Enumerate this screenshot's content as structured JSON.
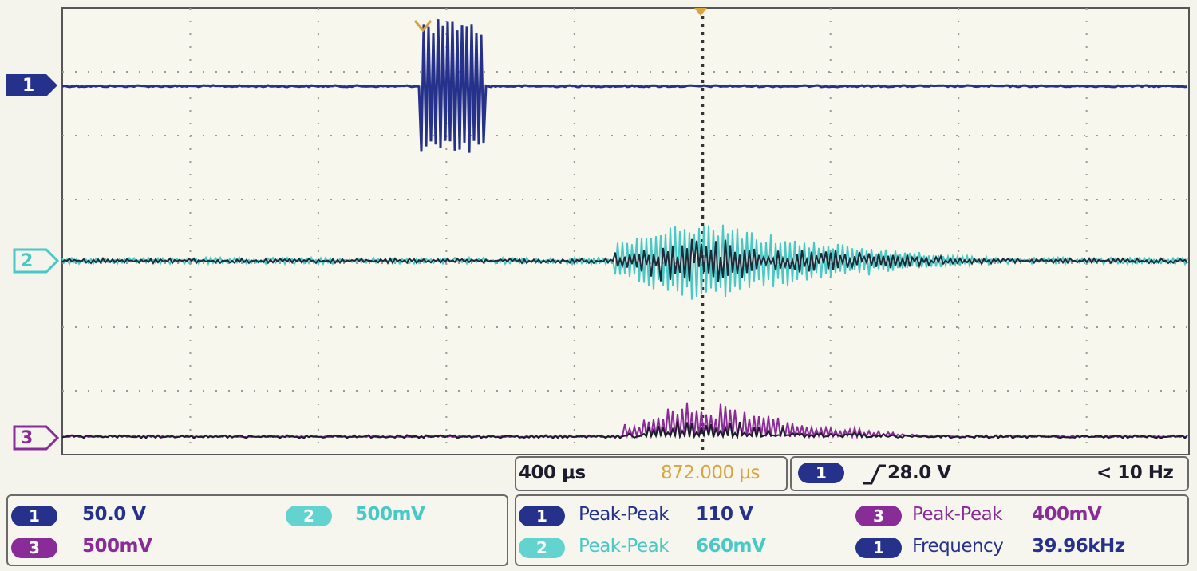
{
  "channel_markers": [
    "1",
    "2",
    "3"
  ],
  "timebase": {
    "scale": "400 μs",
    "delay": "872.000 μs"
  },
  "trigger": {
    "channel": "1",
    "level": "28.0 V",
    "frequency": "< 10 Hz"
  },
  "channel_scales": [
    {
      "channel": "1",
      "scale": "50.0 V"
    },
    {
      "channel": "2",
      "scale": "500mV"
    },
    {
      "channel": "3",
      "scale": "500mV"
    }
  ],
  "measurements": [
    {
      "channel": "1",
      "name": "Peak-Peak",
      "value": "110 V"
    },
    {
      "channel": "3",
      "name": "Peak-Peak",
      "value": "400mV"
    },
    {
      "channel": "2",
      "name": "Peak-Peak",
      "value": "660mV"
    },
    {
      "channel": "1",
      "name": "Frequency",
      "value": "39.96kHz"
    }
  ]
}
